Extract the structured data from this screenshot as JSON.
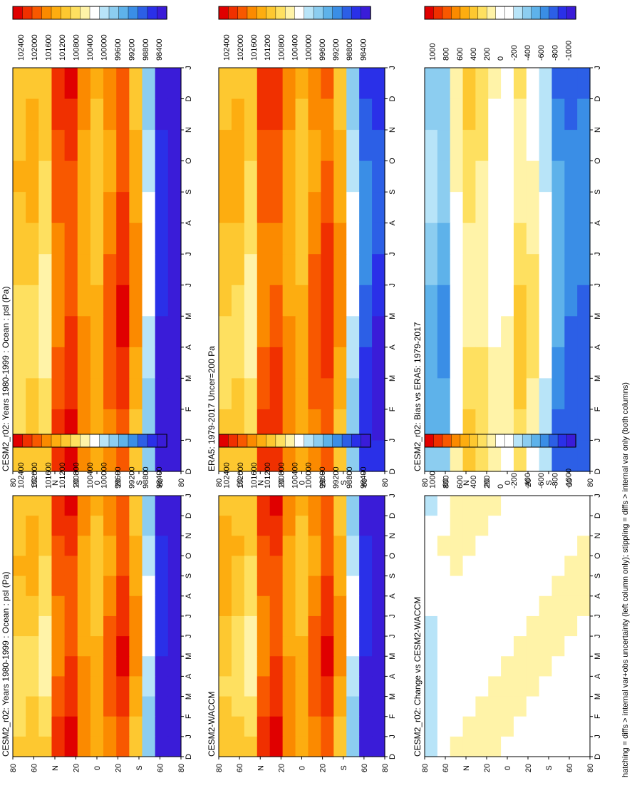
{
  "colors": {
    "abs_scale": [
      "#e00000",
      "#f03000",
      "#f85800",
      "#fb8a00",
      "#fdad10",
      "#fdc830",
      "#fee060",
      "#fff3a8",
      "#ffffff",
      "#b8e4f8",
      "#8ccdf0",
      "#5eb2ea",
      "#3a8ee6",
      "#2c5fe6",
      "#2a30e8",
      "#3a1cd8"
    ],
    "diff_scale": [
      "#e00000",
      "#f03000",
      "#f85800",
      "#fb8a00",
      "#fdad10",
      "#fdc830",
      "#fee060",
      "#fff3a8",
      "#ffffff",
      "#ffffff",
      "#b8e4f8",
      "#8ccdf0",
      "#5eb2ea",
      "#3a8ee6",
      "#2c5fe6",
      "#2a30e8",
      "#3a1cd8"
    ]
  },
  "footnote": "hatching = diffs > internal var+obs uncertainty (left column only); stippling = diffs > internal var only (both columns)",
  "chart_data": [
    {
      "type": "heatmap",
      "title": "CESM2_r02: Years 1980-1999 : Ocean : psl (Pa)",
      "x_ticks": [
        "D",
        "J",
        "F",
        "M",
        "A",
        "M",
        "J",
        "J",
        "A",
        "S",
        "O",
        "N",
        "D",
        "J"
      ],
      "y_ticks": [
        "80",
        "60",
        "40N",
        "20",
        "0",
        "20",
        "40S",
        "60",
        "80"
      ],
      "y_tick_labels": [
        "80",
        "60",
        "N",
        "20",
        "0",
        "20",
        "S",
        "60",
        "80"
      ],
      "colorbar_labels": [
        "102400",
        "102000",
        "101600",
        "101200",
        "100800",
        "100400",
        "100000",
        "99600",
        "99200",
        "98800",
        "98400"
      ],
      "colorbar_values": [
        102400,
        102000,
        101600,
        101200,
        100800,
        100400,
        100000,
        99600,
        99200,
        98800,
        98400
      ],
      "lat_profile": [
        101000,
        101100,
        100800,
        101900,
        102100,
        101500,
        101200,
        101700,
        102100,
        101400,
        100000,
        98500,
        98200
      ]
    },
    {
      "type": "heatmap",
      "title": "CESM2_r02: Years 1980-1999 : Ocean : psl (Pa)",
      "x_ticks": [
        "D",
        "J",
        "F",
        "M",
        "A",
        "M",
        "J",
        "J",
        "A",
        "S",
        "O",
        "N",
        "D",
        "J"
      ],
      "y_tick_labels": [
        "80",
        "60",
        "N",
        "20",
        "0",
        "20",
        "S",
        "60",
        "80"
      ],
      "colorbar_labels": [
        "102400",
        "102000",
        "101600",
        "101200",
        "100800",
        "100400",
        "100000",
        "99600",
        "99200",
        "98800",
        "98400"
      ],
      "lat_profile": [
        101000,
        101100,
        100800,
        101900,
        102100,
        101500,
        101200,
        101700,
        102100,
        101400,
        100000,
        98500,
        98200
      ]
    },
    {
      "type": "heatmap",
      "title": "ERA5: 1979-2017 Uncer=200 Pa",
      "x_ticks": [
        "D",
        "J",
        "F",
        "M",
        "A",
        "M",
        "J",
        "J",
        "A",
        "S",
        "O",
        "N",
        "D",
        "J"
      ],
      "y_tick_labels": [
        "80",
        "60",
        "N",
        "20",
        "0",
        "20",
        "S",
        "60",
        "80"
      ],
      "colorbar_labels": [
        "102400",
        "102000",
        "101600",
        "101200",
        "100800",
        "100400",
        "100000",
        "99600",
        "99200",
        "98800",
        "98400"
      ],
      "lat_profile": [
        101100,
        101100,
        100800,
        101900,
        102000,
        101500,
        101200,
        101700,
        102000,
        101400,
        100000,
        98900,
        98600
      ]
    },
    {
      "type": "heatmap",
      "title": "CESM2-WACCM",
      "x_ticks": [
        "D",
        "J",
        "F",
        "M",
        "A",
        "M",
        "J",
        "J",
        "A",
        "S",
        "O",
        "N",
        "D",
        "J"
      ],
      "y_tick_labels": [
        "80",
        "60",
        "N",
        "20",
        "0",
        "20",
        "S",
        "60",
        "80"
      ],
      "colorbar_labels": [
        "102400",
        "102000",
        "101600",
        "101200",
        "100800",
        "100400",
        "100000",
        "99600",
        "99200",
        "98800",
        "98400"
      ],
      "lat_profile": [
        101200,
        101000,
        100800,
        101900,
        102100,
        101500,
        101200,
        101700,
        102100,
        101400,
        100000,
        98500,
        98200
      ]
    },
    {
      "type": "heatmap",
      "title": "CESM2_r02: Bias vs ERA5: 1979-2017",
      "x_ticks": [
        "D",
        "J",
        "F",
        "M",
        "A",
        "M",
        "J",
        "J",
        "A",
        "S",
        "O",
        "N",
        "D",
        "J"
      ],
      "y_tick_labels": [
        "80",
        "60",
        "N",
        "20",
        "0",
        "20",
        "S",
        "60",
        "80"
      ],
      "colorbar_labels": [
        "1000",
        "800",
        "600",
        "400",
        "200",
        "0",
        "-200",
        "-400",
        "-600",
        "-800",
        "-1000"
      ],
      "lat_profile": [
        -400,
        -500,
        0,
        250,
        200,
        0,
        0,
        250,
        150,
        -200,
        -600,
        -700,
        -700
      ]
    },
    {
      "type": "heatmap",
      "title": "CESM2_r02: Change vs CESM2-WACCM",
      "x_ticks": [
        "D",
        "J",
        "F",
        "M",
        "A",
        "M",
        "J",
        "J",
        "A",
        "S",
        "O",
        "N",
        "D",
        "J"
      ],
      "y_tick_labels": [
        "80",
        "60",
        "N",
        "20",
        "0",
        "20",
        "S",
        "60",
        "80"
      ],
      "colorbar_labels": [
        "1000",
        "800",
        "600",
        "400",
        "200",
        "0",
        "-200",
        "-400",
        "-600",
        "-800",
        "-1000"
      ],
      "lat_profile": [
        -200,
        -50,
        0,
        0,
        0,
        0,
        0,
        0,
        0,
        0,
        0,
        0,
        0
      ]
    }
  ]
}
